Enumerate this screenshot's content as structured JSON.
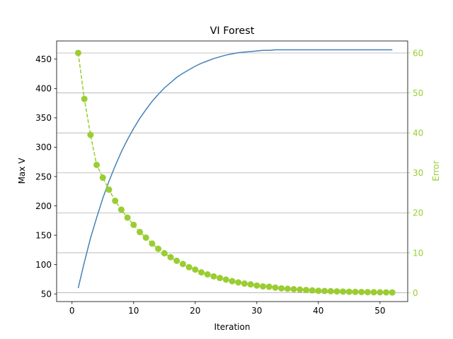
{
  "chart_data": {
    "type": "line",
    "title": "VI Forest",
    "xlabel": "Iteration",
    "ylabel_left": "Max V",
    "ylabel_right": "Error",
    "xlim": [
      -2.5,
      54.5
    ],
    "ylim_left": [
      37,
      481
    ],
    "ylim_right": [
      -2.2,
      63
    ],
    "x_ticks": [
      0,
      10,
      20,
      30,
      40,
      50
    ],
    "y_left_ticks": [
      50,
      100,
      150,
      200,
      250,
      300,
      350,
      400,
      450
    ],
    "y_right_ticks": [
      0,
      10,
      20,
      30,
      40,
      50,
      60
    ],
    "grid": "horizontal lines on right axis ticks",
    "colors": {
      "max_v": "#4682b4",
      "error": "#9acd32",
      "grid": "#b0b0b0"
    },
    "series": [
      {
        "axis": "left",
        "style": "solid line",
        "x": [
          1,
          2,
          3,
          4,
          5,
          6,
          7,
          8,
          9,
          10,
          11,
          12,
          13,
          14,
          15,
          16,
          17,
          18,
          19,
          20,
          21,
          22,
          23,
          24,
          25,
          26,
          27,
          28,
          29,
          30,
          31,
          32,
          33,
          34,
          35,
          36,
          37,
          38,
          39,
          40,
          41,
          42,
          43,
          44,
          45,
          46,
          47,
          48,
          49,
          50,
          51,
          52
        ],
        "values": [
          60,
          104,
          145,
          180,
          213,
          242,
          268,
          292,
          313,
          332,
          349,
          364,
          378,
          390,
          401,
          410,
          419,
          426,
          432,
          438,
          443,
          447,
          451,
          454,
          457,
          459,
          461,
          462,
          463,
          464,
          465,
          465,
          466,
          466,
          466,
          466,
          466,
          466,
          466,
          466,
          466,
          466,
          466,
          466,
          466,
          466,
          466,
          466,
          466,
          466,
          466,
          466
        ]
      },
      {
        "axis": "right",
        "style": "dashed line with circle markers",
        "x": [
          1,
          2,
          3,
          4,
          5,
          6,
          7,
          8,
          9,
          10,
          11,
          12,
          13,
          14,
          15,
          16,
          17,
          18,
          19,
          20,
          21,
          22,
          23,
          24,
          25,
          26,
          27,
          28,
          29,
          30,
          31,
          32,
          33,
          34,
          35,
          36,
          37,
          38,
          39,
          40,
          41,
          42,
          43,
          44,
          45,
          46,
          47,
          48,
          49,
          50,
          51,
          52
        ],
        "values": [
          60,
          48.5,
          39.5,
          32,
          28.8,
          25.8,
          23,
          20.8,
          18.8,
          17,
          15.2,
          13.8,
          12.3,
          11,
          9.9,
          8.9,
          8,
          7.2,
          6.4,
          5.8,
          5.1,
          4.6,
          4.1,
          3.7,
          3.3,
          2.9,
          2.6,
          2.3,
          2.1,
          1.8,
          1.6,
          1.5,
          1.3,
          1.1,
          1,
          0.9,
          0.8,
          0.7,
          0.6,
          0.5,
          0.45,
          0.4,
          0.35,
          0.3,
          0.26,
          0.22,
          0.19,
          0.16,
          0.14,
          0.12,
          0.1,
          0.08
        ]
      }
    ]
  }
}
